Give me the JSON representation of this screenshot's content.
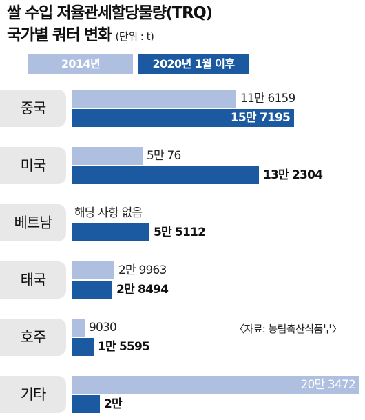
{
  "title_line1": "쌀 수입 저율관세할당물량(TRQ)",
  "title_line2": "국가별 쿼터 변화",
  "unit": "(단위 : t)",
  "legend": {
    "s2014": "2014년",
    "s2020": "2020년 1월 이후"
  },
  "source": "〈자료: 농림축산식품부〉",
  "colors": {
    "s2014": "#afbfe0",
    "s2020": "#1b5aa0",
    "category_bg": "#e8e8e8"
  },
  "chart_data": {
    "type": "bar",
    "orientation": "horizontal",
    "title": "쌀 수입 저율관세할당물량(TRQ) 국가별 쿼터 변화",
    "unit": "t",
    "categories": [
      "중국",
      "미국",
      "베트남",
      "태국",
      "호주",
      "기타"
    ],
    "series": [
      {
        "name": "2014년",
        "values": [
          116159,
          50076,
          0,
          29963,
          9030,
          203472
        ],
        "labels": [
          "11만 6159",
          "5만 76",
          "해당 사항 없음",
          "2만 9963",
          "9030",
          "20만 3472"
        ]
      },
      {
        "name": "2020년 1월 이후",
        "values": [
          157195,
          132304,
          55112,
          28494,
          15595,
          20000
        ],
        "labels": [
          "15만 7195",
          "13만 2304",
          "5만 5112",
          "2만 8494",
          "1만 5595",
          "2만"
        ]
      }
    ]
  }
}
